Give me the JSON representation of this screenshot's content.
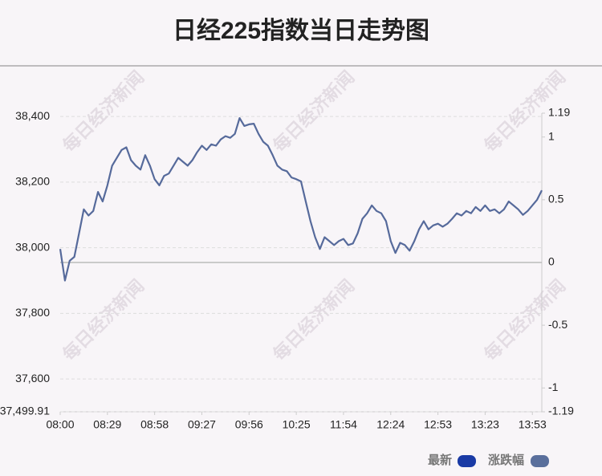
{
  "chart_data": {
    "type": "line",
    "title": "日经225指数当日走势图",
    "watermark": "每日经济新闻",
    "categories": [
      "08:00",
      null,
      null,
      null,
      null,
      null,
      null,
      null,
      null,
      null,
      "08:29",
      null,
      null,
      null,
      null,
      null,
      null,
      null,
      null,
      null,
      "08:58",
      null,
      null,
      null,
      null,
      null,
      null,
      null,
      null,
      null,
      "09:27",
      null,
      null,
      null,
      null,
      null,
      null,
      null,
      null,
      null,
      "09:56",
      null,
      null,
      null,
      null,
      null,
      null,
      null,
      null,
      null,
      "10:25",
      null,
      null,
      null,
      null,
      null,
      null,
      null,
      null,
      null,
      "11:54",
      null,
      null,
      null,
      null,
      null,
      null,
      null,
      null,
      null,
      "12:24",
      null,
      null,
      null,
      null,
      null,
      null,
      null,
      null,
      null,
      "12:53",
      null,
      null,
      null,
      null,
      null,
      null,
      null,
      null,
      null,
      "13:23",
      null,
      null,
      null,
      null,
      null,
      null,
      null,
      null,
      null,
      "13:53",
      null,
      null
    ],
    "series": [
      {
        "color": "#566a9b",
        "values": [
          37996,
          37900,
          37960,
          37972,
          38044,
          38117,
          38098,
          38112,
          38170,
          38141,
          38190,
          38250,
          38274,
          38298,
          38306,
          38267,
          38250,
          38238,
          38282,
          38250,
          38209,
          38190,
          38219,
          38226,
          38250,
          38274,
          38262,
          38250,
          38267,
          38291,
          38311,
          38298,
          38315,
          38311,
          38330,
          38340,
          38335,
          38347,
          38395,
          38371,
          38376,
          38378,
          38347,
          38323,
          38311,
          38282,
          38250,
          38238,
          38233,
          38214,
          38209,
          38202,
          38141,
          38081,
          38032,
          37996,
          38032,
          38020,
          38008,
          38020,
          38027,
          38008,
          38013,
          38044,
          38088,
          38105,
          38129,
          38112,
          38105,
          38081,
          38020,
          37984,
          38015,
          38008,
          37991,
          38020,
          38056,
          38081,
          38056,
          38068,
          38073,
          38064,
          38073,
          38088,
          38105,
          38098,
          38112,
          38105,
          38124,
          38112,
          38129,
          38112,
          38117,
          38105,
          38117,
          38141,
          38129,
          38117,
          38100,
          38112,
          38129,
          38146,
          38175
        ]
      }
    ],
    "legend": [
      {
        "name": "最新",
        "color": "#1a3aa5"
      },
      {
        "name": "涨跌幅",
        "color": "#5a6f9c"
      }
    ],
    "ylim": [
      37499.91,
      38410
    ],
    "yticks": [
      {
        "value": 37499.91,
        "label": "37,499.91"
      },
      {
        "value": 37600,
        "label": "37,600"
      },
      {
        "value": 37800,
        "label": "37,800"
      },
      {
        "value": 38000,
        "label": "38,000"
      },
      {
        "value": 38200,
        "label": "38,200"
      },
      {
        "value": 38400,
        "label": "38,400"
      }
    ],
    "y2lim": [
      -1.19,
      1.19
    ],
    "y2ticks": [
      -1.19,
      -1,
      -0.5,
      0,
      0.5,
      1,
      1.19
    ],
    "grid": true
  }
}
